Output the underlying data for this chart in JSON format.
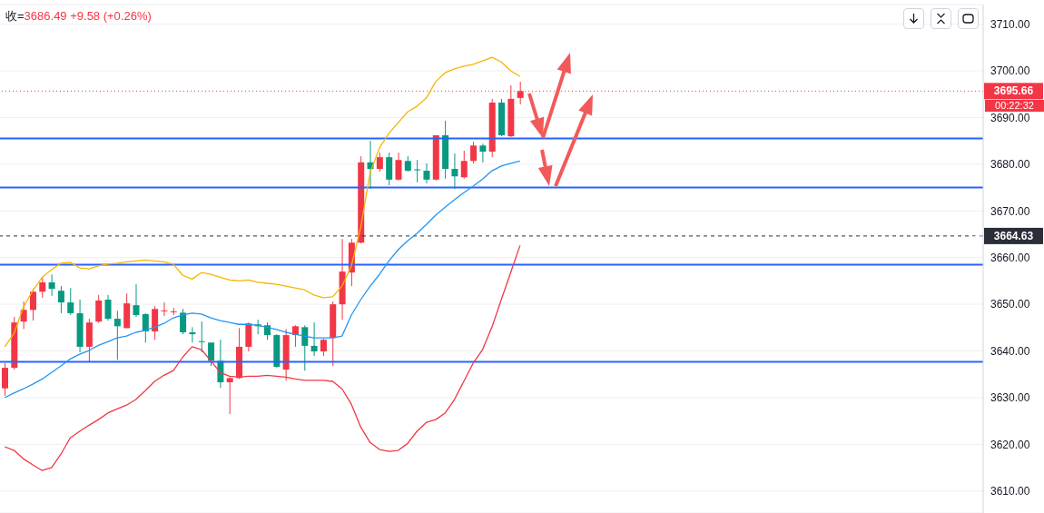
{
  "chart_data": {
    "type": "candlestick",
    "categories": [
      null,
      null,
      null,
      null,
      null,
      null,
      null,
      null,
      null,
      null,
      null,
      null,
      null,
      null,
      null,
      null,
      null,
      null,
      null,
      null,
      null,
      null,
      null,
      null,
      null,
      null,
      null,
      null,
      null,
      null,
      null,
      null,
      null,
      null,
      null,
      null,
      null,
      null,
      null,
      null,
      null,
      null,
      null,
      null,
      null,
      null,
      null,
      null,
      null,
      null,
      null,
      null,
      null,
      null,
      null,
      null
    ],
    "ohlc": [
      [
        3632,
        3637.4,
        3630.4,
        3636.4
      ],
      [
        3636.4,
        3647.3,
        3636,
        3646.1
      ],
      [
        3646.3,
        3650.6,
        3644.7,
        3648.8
      ],
      [
        3648.8,
        3653.3,
        3646.5,
        3652.7
      ],
      [
        3652.7,
        3655.8,
        3651.4,
        3654.7
      ],
      [
        3654.7,
        3656.4,
        3651.8,
        3653.3
      ],
      [
        3652.9,
        3653.9,
        3648.1,
        3650.4
      ],
      [
        3650.4,
        3653.5,
        3647.7,
        3648.1
      ],
      [
        3648.1,
        3651,
        3639.7,
        3640.9
      ],
      [
        3640.9,
        3646.9,
        3637.7,
        3646.1
      ],
      [
        3646.3,
        3652,
        3646,
        3650.8
      ],
      [
        3651,
        3652,
        3646.5,
        3646.9
      ],
      [
        3646.9,
        3648.6,
        3638.1,
        3645.3
      ],
      [
        3644.9,
        3652.3,
        3644.9,
        3650.2
      ],
      [
        3649.8,
        3654.3,
        3647.3,
        3647.7
      ],
      [
        3647.9,
        3648.1,
        3641.8,
        3644.2
      ],
      [
        3644.2,
        3649.6,
        3642.4,
        3649
      ],
      [
        3648.5,
        3650.4,
        3647.5,
        3648.7
      ],
      [
        3648.3,
        3649.2,
        3647.7,
        3648.5
      ],
      [
        3648.2,
        3649,
        3643.6,
        3644
      ],
      [
        3644,
        3645.1,
        3641.8,
        3643.6
      ],
      [
        3642.1,
        3646.3,
        3639.7,
        3641.9
      ],
      [
        3641.8,
        3641.8,
        3636.8,
        3637.9
      ],
      [
        3637.9,
        3642.4,
        3632.1,
        3633.3
      ],
      [
        3633.3,
        3634.4,
        3626.5,
        3634.2
      ],
      [
        3634.2,
        3644.9,
        3634,
        3640.9
      ],
      [
        3640.9,
        3646.1,
        3639.9,
        3645.9
      ],
      [
        3645.7,
        3646.7,
        3643.6,
        3645.3
      ],
      [
        3645.5,
        3646.1,
        3642.4,
        3643.4
      ],
      [
        3643.4,
        3643.6,
        3636.4,
        3636.6
      ],
      [
        3636,
        3644.7,
        3633.7,
        3643.4
      ],
      [
        3643.4,
        3645.5,
        3640.9,
        3645.3
      ],
      [
        3645.1,
        3645.5,
        3635.8,
        3641.1
      ],
      [
        3641.1,
        3646.1,
        3638.9,
        3639.9
      ],
      [
        3639.9,
        3642.6,
        3638.9,
        3642.4
      ],
      [
        3642.8,
        3650.6,
        3636.8,
        3650
      ],
      [
        3650,
        3664,
        3646.7,
        3657
      ],
      [
        3656.8,
        3664,
        3653.9,
        3663.2
      ],
      [
        3663.2,
        3681.7,
        3663,
        3680.4
      ],
      [
        3680.4,
        3685,
        3674.7,
        3679
      ],
      [
        3679,
        3682.5,
        3678.4,
        3681.5
      ],
      [
        3681.5,
        3682.5,
        3675.5,
        3676.7
      ],
      [
        3676.7,
        3682.5,
        3676.5,
        3680.9
      ],
      [
        3680.7,
        3681.7,
        3678.4,
        3678.6
      ],
      [
        3678.9,
        3680.9,
        3676.1,
        3678.7
      ],
      [
        3678.6,
        3680.2,
        3675.9,
        3676.7
      ],
      [
        3676.7,
        3686.2,
        3676.5,
        3686.2
      ],
      [
        3686.2,
        3689.3,
        3676.9,
        3679
      ],
      [
        3679,
        3682.3,
        3674.7,
        3677.4
      ],
      [
        3677.2,
        3682.9,
        3676.9,
        3680.7
      ],
      [
        3680.7,
        3684.8,
        3680.2,
        3684
      ],
      [
        3684,
        3684.4,
        3680.4,
        3682.7
      ],
      [
        3682.7,
        3694,
        3681.5,
        3693.2
      ],
      [
        3693.2,
        3694,
        3686,
        3686.2
      ],
      [
        3686,
        3696.9,
        3685.8,
        3694
      ],
      [
        3694.2,
        3697.7,
        3692.8,
        3695.66
      ]
    ],
    "colors": [
      "#f23645",
      "#f23645",
      "#f23645",
      "#f23645",
      "#f23645",
      "#089981",
      "#089981",
      "#089981",
      "#089981",
      "#f23645",
      "#f23645",
      "#089981",
      "#089981",
      "#f23645",
      "#089981",
      "#089981",
      "#f23645",
      "#f23645",
      "#f23645",
      "#089981",
      "#089981",
      "#089981",
      "#089981",
      "#089981",
      "#f23645",
      "#f23645",
      "#f23645",
      "#089981",
      "#089981",
      "#089981",
      "#f23645",
      "#f23645",
      "#089981",
      "#089981",
      "#f23645",
      "#f23645",
      "#f23645",
      "#f23645",
      "#f23645",
      "#089981",
      "#f23645",
      "#089981",
      "#f23645",
      "#089981",
      "#089981",
      "#089981",
      "#f23645",
      "#089981",
      "#089981",
      "#f23645",
      "#f23645",
      "#089981",
      "#f23645",
      "#089981",
      "#f23645",
      "#f23645"
    ],
    "series": [
      {
        "type": "line",
        "color": "#f7b500",
        "values": [
          3640.9,
          3643.8,
          3649.4,
          3652.9,
          3655.8,
          3657.4,
          3658.8,
          3659,
          3657.8,
          3657.6,
          3658.2,
          3658.6,
          3658.8,
          3659.1,
          3659.3,
          3659.5,
          3659.3,
          3659.1,
          3658.6,
          3656.2,
          3655.4,
          3656.8,
          3656.4,
          3655.8,
          3655.2,
          3655,
          3655.2,
          3654.7,
          3654.5,
          3654.3,
          3653.9,
          3653.5,
          3653.1,
          3652,
          3651.4,
          3651.6,
          3653.9,
          3658.2,
          3666.5,
          3678.2,
          3683.5,
          3686.6,
          3688.9,
          3691.2,
          3692.4,
          3694.2,
          3697.7,
          3699.6,
          3700.4,
          3701,
          3701.4,
          3702.1,
          3702.9,
          3701.9,
          3700,
          3698.8
        ]
      },
      {
        "type": "line",
        "color": "#2196f3",
        "values": [
          3630,
          3631,
          3631.9,
          3632.9,
          3634,
          3635.4,
          3636.8,
          3638.3,
          3639.3,
          3640.1,
          3641.2,
          3642,
          3642.8,
          3643.2,
          3644,
          3644.4,
          3645.1,
          3645.9,
          3647.1,
          3647.7,
          3648.1,
          3647.9,
          3647.1,
          3646.5,
          3646.1,
          3645.7,
          3645.7,
          3645.5,
          3645.1,
          3644.6,
          3644,
          3643.6,
          3643.2,
          3642.8,
          3642.8,
          3642.8,
          3643.2,
          3647.7,
          3651,
          3653.9,
          3656.4,
          3659.3,
          3661.7,
          3663.6,
          3665.2,
          3667.1,
          3669.1,
          3670.8,
          3672.4,
          3673.9,
          3675.3,
          3676.8,
          3678.6,
          3679.6,
          3680.2,
          3680.7
        ]
      },
      {
        "type": "line",
        "color": "#f23645",
        "values": [
          3619.5,
          3618.7,
          3616.9,
          3615.6,
          3614.4,
          3615,
          3617.9,
          3621.4,
          3622.8,
          3624.1,
          3625.3,
          3626.7,
          3627.6,
          3628.4,
          3629.6,
          3631.5,
          3633.5,
          3634.8,
          3635.8,
          3638.7,
          3640.9,
          3640.3,
          3637.9,
          3635.4,
          3634.6,
          3634.4,
          3634.6,
          3634.6,
          3634.8,
          3634.6,
          3634.4,
          3634,
          3633.7,
          3633.7,
          3633.7,
          3633.5,
          3631.9,
          3628.6,
          3623.7,
          3620.4,
          3618.9,
          3618.5,
          3618.7,
          3620.2,
          3622.8,
          3624.7,
          3625.3,
          3626.7,
          3629.6,
          3633.5,
          3637.4,
          3640.3,
          3645.1,
          3651,
          3656.8,
          3662.6
        ]
      }
    ],
    "ylim": [
      3605.3,
      3714.2
    ],
    "yticks": [
      {
        "value": 3610,
        "label": "3610.00"
      },
      {
        "value": 3620,
        "label": "3620.00"
      },
      {
        "value": 3630,
        "label": "3630.00"
      },
      {
        "value": 3640,
        "label": "3640.00"
      },
      {
        "value": 3650,
        "label": "3650.00"
      },
      {
        "value": 3660,
        "label": "3660.00"
      },
      {
        "value": 3670,
        "label": "3670.00"
      },
      {
        "value": 3680,
        "label": "3680.00"
      },
      {
        "value": 3690,
        "label": "3690.00"
      },
      {
        "value": 3700,
        "label": "3700.00"
      },
      {
        "value": 3710,
        "label": "3710.00"
      }
    ],
    "grid": "y",
    "tick_labels": "y",
    "ref_lines": [
      {
        "axis": "y",
        "value": 3685.5,
        "color": "#2962ff",
        "line_style": "solid"
      },
      {
        "axis": "y",
        "value": 3675,
        "color": "#2962ff",
        "line_style": "solid"
      },
      {
        "axis": "y",
        "value": 3658.5,
        "color": "#2962ff",
        "line_style": "solid"
      },
      {
        "axis": "y",
        "value": 3637.7,
        "color": "#2962ff",
        "line_style": "solid"
      },
      {
        "axis": "y",
        "value": 3695.66,
        "label": "3695.66",
        "color": "#f23645",
        "line_style": "dotted"
      },
      {
        "axis": "y",
        "value": 3664.63,
        "label": "3664.63",
        "color": "#2a2e39",
        "line_style": "dashed"
      }
    ],
    "annotations": [
      "收=3686.49 +9.58 (+0.26%)",
      "00:22:32"
    ]
  }
}
